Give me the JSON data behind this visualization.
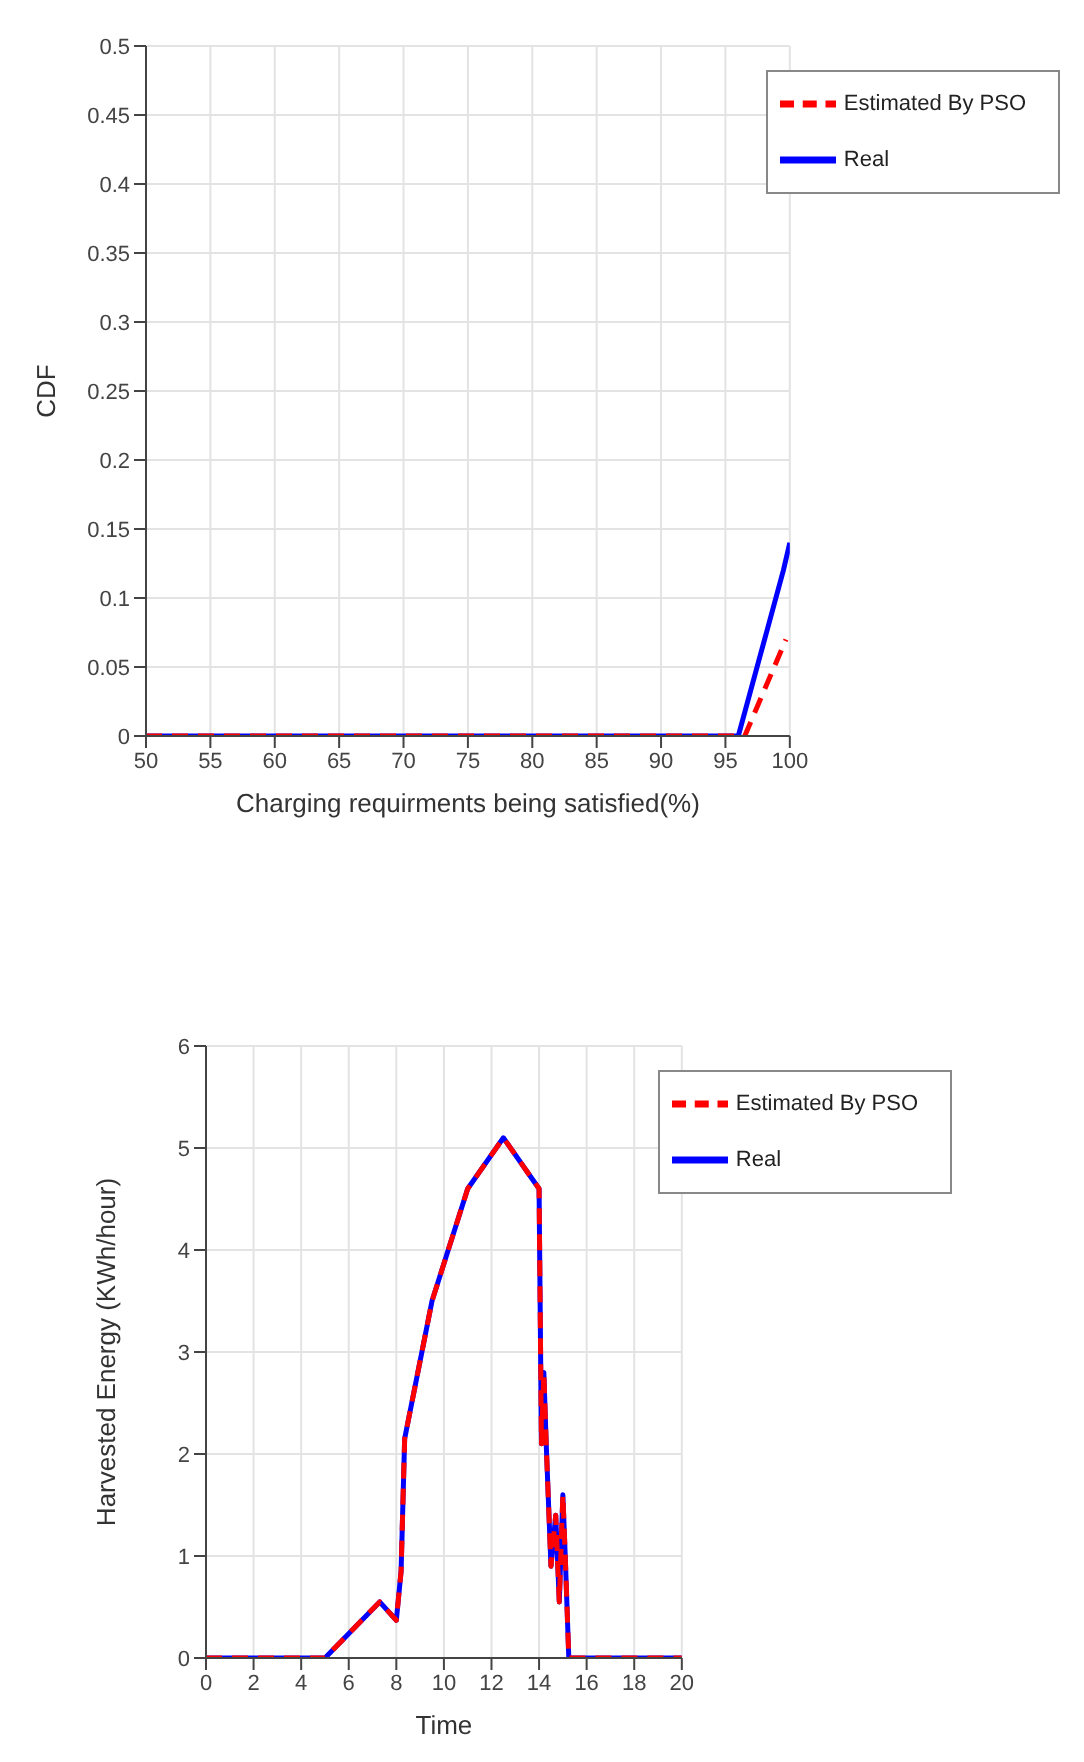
{
  "chart_data": [
    {
      "type": "line",
      "xlabel": "Charging requirments being satisfied(%)",
      "ylabel": "CDF",
      "xlim": [
        50,
        100
      ],
      "xticks": [
        50,
        55,
        60,
        65,
        70,
        75,
        80,
        85,
        90,
        95,
        100
      ],
      "ylim": [
        0,
        0.5
      ],
      "yticks": [
        0,
        0.05,
        0.1,
        0.15,
        0.2,
        0.25,
        0.3,
        0.35,
        0.4,
        0.45,
        0.5
      ],
      "grid": true,
      "legend": "top right",
      "marker": "none",
      "series": [
        {
          "name": "Real",
          "color": "#0000ff",
          "line_style": "solid",
          "x": [
            50,
            96,
            99.5,
            100
          ],
          "values": [
            0,
            0,
            0.12,
            0.14
          ]
        },
        {
          "name": "Estimated By PSO",
          "color": "#ff0000",
          "line_style": "dashed",
          "x": [
            50,
            96.5,
            99.7
          ],
          "values": [
            0,
            0,
            0.07
          ]
        }
      ]
    },
    {
      "type": "line",
      "xlabel": "Time",
      "ylabel": "Harvested Energy (KWh/hour)",
      "xlim": [
        0,
        20
      ],
      "xticks": [
        0,
        2,
        4,
        6,
        8,
        10,
        12,
        14,
        16,
        18,
        20
      ],
      "ylim": [
        0,
        6
      ],
      "yticks": [
        0,
        1,
        2,
        3,
        4,
        5,
        6
      ],
      "grid": true,
      "legend": "top right",
      "marker": "none",
      "series": [
        {
          "name": "Real",
          "color": "#0000ff",
          "line_style": "solid",
          "x": [
            0,
            5,
            7.3,
            8,
            8.2,
            8.35,
            9.5,
            11,
            12.5,
            14,
            14.1,
            14.2,
            14.3,
            14.5,
            14.7,
            14.85,
            15,
            15.1,
            15.25,
            20
          ],
          "values": [
            0,
            0,
            0.55,
            0.37,
            0.85,
            2.15,
            3.5,
            4.6,
            5.1,
            4.6,
            2.1,
            2.8,
            2.1,
            0.9,
            1.4,
            0.55,
            1.6,
            1.0,
            0,
            0
          ]
        },
        {
          "name": "Estimated By PSO",
          "color": "#ff0000",
          "line_style": "dashed",
          "x": [
            0,
            5,
            7.3,
            8,
            8.2,
            8.35,
            9.5,
            11,
            12.5,
            14,
            14.1,
            14.2,
            14.3,
            14.5,
            14.7,
            14.85,
            15,
            15.1,
            15.25,
            20
          ],
          "values": [
            0,
            0,
            0.55,
            0.37,
            0.85,
            2.15,
            3.5,
            4.6,
            5.1,
            4.6,
            2.1,
            2.8,
            2.1,
            0.9,
            1.4,
            0.55,
            1.6,
            1.0,
            0,
            0
          ]
        }
      ]
    }
  ]
}
